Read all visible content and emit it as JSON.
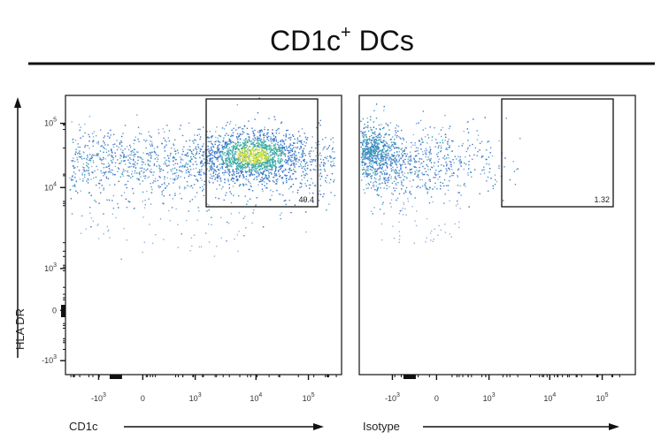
{
  "figure": {
    "title_main": "CD1c",
    "title_sup": "+",
    "title_rest": " DCs"
  },
  "chart_data": [
    {
      "type": "scatter",
      "panel": "left",
      "xlabel": "CD1c",
      "ylabel": "HLA DR",
      "scale": "biexponential",
      "x_tick_labels": [
        {
          "base": "-10",
          "exp": "3"
        },
        {
          "base": "0",
          "exp": ""
        },
        {
          "base": "10",
          "exp": "3"
        },
        {
          "base": "10",
          "exp": "4"
        },
        {
          "base": "10",
          "exp": "5"
        }
      ],
      "y_tick_labels": [
        {
          "base": "10",
          "exp": "5"
        },
        {
          "base": "10",
          "exp": "4"
        },
        {
          "base": "10",
          "exp": "3"
        },
        {
          "base": "0",
          "exp": ""
        },
        {
          "base": "-10",
          "exp": "3"
        }
      ],
      "gate": {
        "x_range": [
          3000,
          150000
        ],
        "y_range": [
          5000,
          150000
        ],
        "value": "49.4"
      },
      "population": {
        "hla_dr_center": 22000,
        "cd1c_range": [
          -3000,
          100000
        ],
        "dense_region_cd1c": 20000
      }
    },
    {
      "type": "scatter",
      "panel": "right",
      "xlabel": "Isotype",
      "ylabel": "HLA DR",
      "scale": "biexponential",
      "x_tick_labels": [
        {
          "base": "-10",
          "exp": "3"
        },
        {
          "base": "0",
          "exp": ""
        },
        {
          "base": "10",
          "exp": "3"
        },
        {
          "base": "10",
          "exp": "4"
        },
        {
          "base": "10",
          "exp": "5"
        }
      ],
      "gate": {
        "x_range": [
          3000,
          150000
        ],
        "y_range": [
          5000,
          150000
        ],
        "value": "1.32"
      },
      "population": {
        "hla_dr_center": 22000,
        "isotype_range": [
          -3000,
          2000
        ],
        "dense_region_isotype": -1500
      }
    }
  ]
}
